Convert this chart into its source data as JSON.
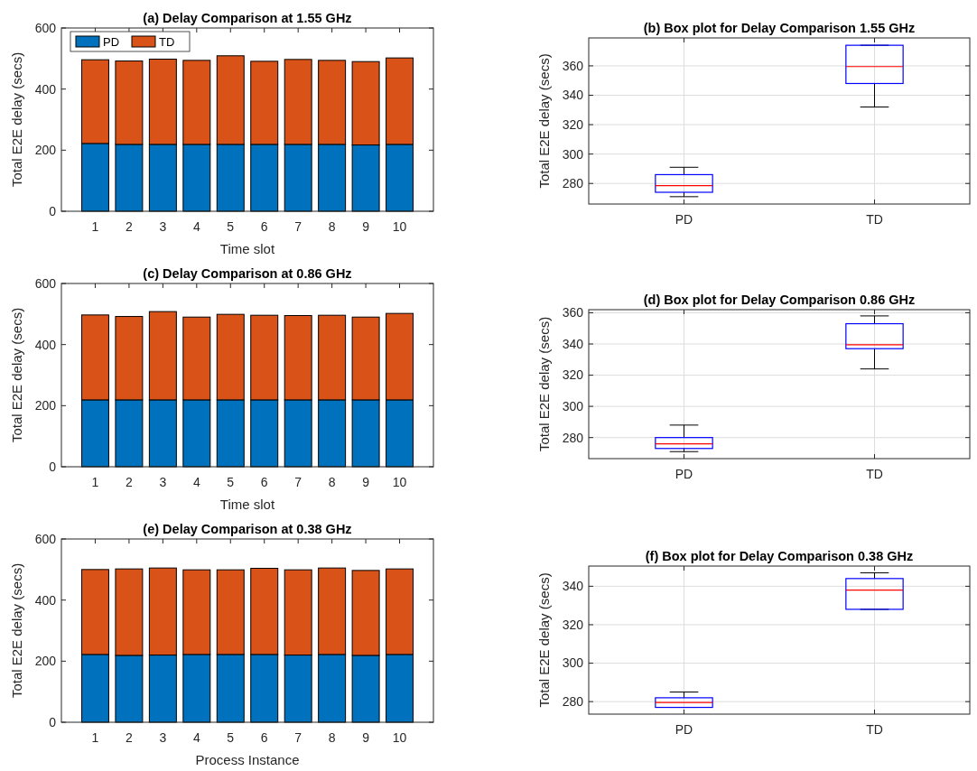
{
  "chart_data": [
    {
      "type": "bar",
      "title": "(a) Delay Comparison at 1.55 GHz",
      "xlabel": "Time slot",
      "ylabel": "Total E2E delay (secs)",
      "categories": [
        "1",
        "2",
        "3",
        "4",
        "5",
        "6",
        "7",
        "8",
        "9",
        "10"
      ],
      "stacked": true,
      "ylim": [
        0,
        600
      ],
      "yticks": [
        0,
        200,
        400,
        600
      ],
      "legend": "top left",
      "series": [
        {
          "name": "PD",
          "color": "#0072bd",
          "values": [
            222,
            219,
            219,
            219,
            219,
            219,
            219,
            219,
            217,
            219
          ]
        },
        {
          "name": "TD",
          "color": "#d95319",
          "values": [
            274,
            273,
            279,
            275,
            290,
            272,
            278,
            275,
            273,
            283
          ]
        }
      ]
    },
    {
      "type": "box",
      "title": "(b) Box plot for Delay Comparison 1.55 GHz",
      "ylabel": "Total E2E delay (secs)",
      "categories": [
        "PD",
        "TD"
      ],
      "ylim": [
        266,
        379
      ],
      "yticks": [
        280,
        300,
        320,
        340,
        360
      ],
      "grid": true,
      "series": [
        {
          "color": "#0000ff",
          "boxes": [
            {
              "low": 271,
              "q1": 274,
              "median": 278.5,
              "q3": 286,
              "high": 291
            },
            {
              "low": 332,
              "q1": 348,
              "median": 359.5,
              "q3": 374,
              "high": 374
            }
          ]
        }
      ]
    },
    {
      "type": "bar",
      "title": "(c) Delay Comparison at 0.86 GHz",
      "xlabel": "Time slot",
      "ylabel": "Total E2E delay (secs)",
      "categories": [
        "1",
        "2",
        "3",
        "4",
        "5",
        "6",
        "7",
        "8",
        "9",
        "10"
      ],
      "stacked": true,
      "ylim": [
        0,
        600
      ],
      "yticks": [
        0,
        200,
        400,
        600
      ],
      "series": [
        {
          "color": "#0072bd",
          "values": [
            219,
            219,
            219,
            219,
            219,
            219,
            219,
            219,
            219,
            219
          ]
        },
        {
          "color": "#d95319",
          "values": [
            278,
            273,
            289,
            271,
            280,
            277,
            276,
            277,
            271,
            283
          ]
        }
      ]
    },
    {
      "type": "box",
      "title": "(d) Box plot for Delay Comparison 0.86 GHz",
      "ylabel": "Total E2E delay (secs)",
      "categories": [
        "PD",
        "TD"
      ],
      "ylim": [
        266.5,
        362
      ],
      "yticks": [
        280,
        300,
        320,
        340,
        360
      ],
      "grid": true,
      "series": [
        {
          "color": "#0000ff",
          "boxes": [
            {
              "low": 271,
              "q1": 273,
              "median": 276,
              "q3": 280,
              "high": 288
            },
            {
              "low": 324,
              "q1": 337,
              "median": 339.5,
              "q3": 353,
              "high": 358
            }
          ]
        }
      ]
    },
    {
      "type": "bar",
      "title": "(e) Delay Comparison at 0.38 GHz",
      "xlabel": "Process Instance",
      "ylabel": "Total E2E delay (secs)",
      "categories": [
        "1",
        "2",
        "3",
        "4",
        "5",
        "6",
        "7",
        "8",
        "9",
        "10"
      ],
      "stacked": true,
      "ylim": [
        0,
        600
      ],
      "yticks": [
        0,
        200,
        400,
        600
      ],
      "series": [
        {
          "color": "#0072bd",
          "values": [
            222,
            219,
            220,
            222,
            222,
            222,
            220,
            222,
            219,
            222
          ]
        },
        {
          "color": "#d95319",
          "values": [
            278,
            283,
            285,
            277,
            277,
            282,
            279,
            283,
            278,
            280
          ]
        }
      ]
    },
    {
      "type": "box",
      "title": "(f) Box plot for Delay Comparison 0.38 GHz",
      "ylabel": "Total E2E delay (secs)",
      "categories": [
        "PD",
        "TD"
      ],
      "ylim": [
        273.5,
        350.5
      ],
      "yticks": [
        280,
        300,
        320,
        340
      ],
      "grid": true,
      "series": [
        {
          "color": "#0000ff",
          "boxes": [
            {
              "low": 277,
              "q1": 277,
              "median": 279.5,
              "q3": 282,
              "high": 285
            },
            {
              "low": 328,
              "q1": 328,
              "median": 338,
              "q3": 344,
              "high": 347
            }
          ]
        }
      ]
    }
  ]
}
